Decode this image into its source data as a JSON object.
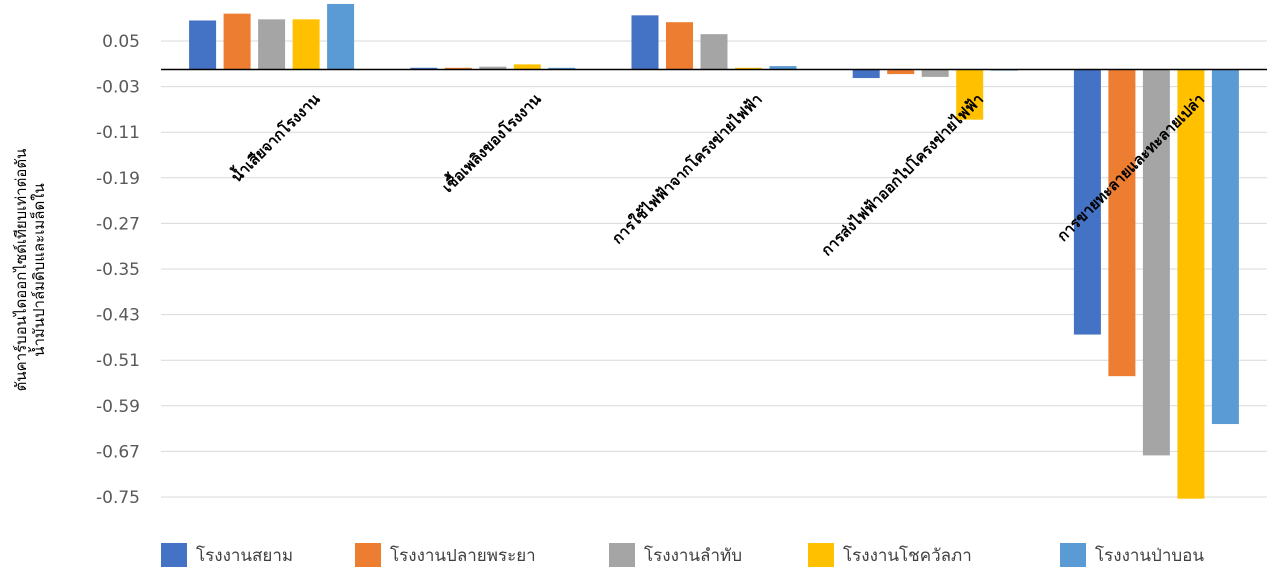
{
  "chart_data": {
    "type": "bar",
    "title": "",
    "xlabel": "",
    "ylabel": [
      "ตันคาร์บอนไดออกไซด์เทียบเท่าต่อตัน",
      "น้ำมันปาล์มดิบและเมล็ดใน"
    ],
    "ylim": [
      -0.75,
      0.11
    ],
    "yticks": [
      0.05,
      -0.03,
      -0.11,
      -0.19,
      -0.27,
      -0.35,
      -0.43,
      -0.51,
      -0.59,
      -0.67,
      -0.75
    ],
    "grid": true,
    "legend_position": "bottom",
    "categories": [
      "น้ำเสียจากโรงงาน",
      "เชื้อเพลิงของโรงงาน",
      "การใช้ไฟฟ้าจากโครงข่ายไฟฟ้า",
      "การส่งไฟฟ้าออกไปโครงข่ายไฟฟ้า",
      "การขายทะลายและทะลายเปล่า"
    ],
    "series": [
      {
        "name": "โรงงานสยาม",
        "color": "#4472c4",
        "values": [
          0.086,
          0.003,
          0.095,
          -0.015,
          -0.465
        ]
      },
      {
        "name": "โรงงานปลายพระยา",
        "color": "#ed7d31",
        "values": [
          0.098,
          0.003,
          0.083,
          -0.008,
          -0.538
        ]
      },
      {
        "name": "โรงงานลำทับ",
        "color": "#a5a5a5",
        "values": [
          0.088,
          0.005,
          0.062,
          -0.013,
          -0.677
        ]
      },
      {
        "name": "โรงงานโชควัลภา",
        "color": "#ffc000",
        "values": [
          0.088,
          0.009,
          0.003,
          -0.088,
          -0.753
        ]
      },
      {
        "name": "โรงงานป่าบอน",
        "color": "#5b9bd5",
        "values": [
          0.115,
          0.003,
          0.006,
          -0.002,
          -0.622
        ]
      }
    ]
  }
}
